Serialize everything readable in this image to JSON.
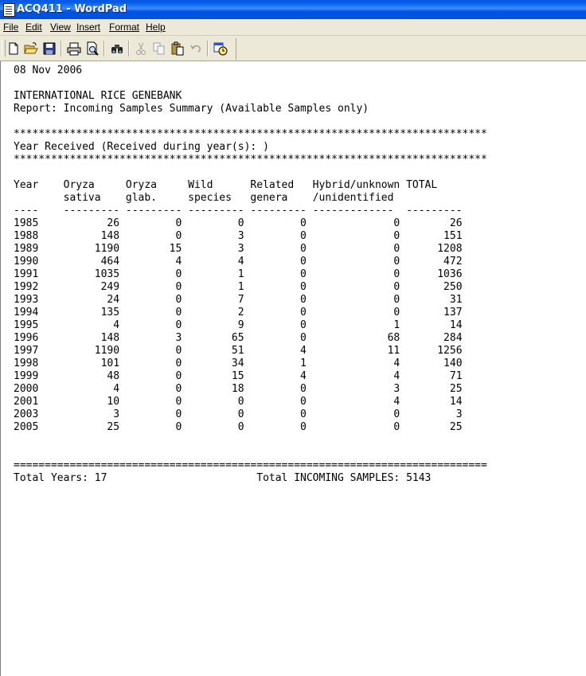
{
  "window": {
    "title": "ACQ411 - WordPad"
  },
  "menu": {
    "file": "File",
    "edit": "Edit",
    "view": "View",
    "insert": "Insert",
    "format": "Format",
    "help": "Help"
  },
  "toolbar": [
    "new-icon",
    "open-icon",
    "save-icon",
    "print-icon",
    "print-preview-icon",
    "find-icon",
    "cut-icon",
    "copy-icon",
    "paste-icon",
    "undo-icon",
    "date-time-icon"
  ],
  "report": {
    "date": "08 Nov 2006",
    "org": "INTERNATIONAL RICE GENEBANK",
    "title": "Report: Incoming Samples Summary (Available Samples only)",
    "stars": "****************************************************************************",
    "year_received": "Year Received (Received during year(s): )",
    "header1": "Year    Oryza     Oryza     Wild      Related   Hybrid/unknown TOTAL",
    "header2": "        sativa    glab.     species   genera    /unidentified",
    "underline": "----    --------- --------- --------- --------- -------------  ---------",
    "rows": [
      "1985           26         0         0         0              0        26",
      "1988          148         0         3         0              0       151",
      "1989         1190        15         3         0              0      1208",
      "1990          464         4         4         0              0       472",
      "1991         1035         0         1         0              0      1036",
      "1992          249         0         1         0              0       250",
      "1993           24         0         7         0              0        31",
      "1994          135         0         2         0              0       137",
      "1995            4         0         9         0              1        14",
      "1996          148         3        65         0             68       284",
      "1997         1190         0        51         4             11      1256",
      "1998          101         0        34         1              4       140",
      "1999           48         0        15         4              4        71",
      "2000            4         0        18         0              3        25",
      "2001           10         0         0         0              4        14",
      "2003            3         0         0         0              0         3",
      "2005           25         0         0         0              0        25"
    ],
    "equals": "============================================================================",
    "footer": "Total Years: 17                        Total INCOMING SAMPLES: 5143"
  }
}
